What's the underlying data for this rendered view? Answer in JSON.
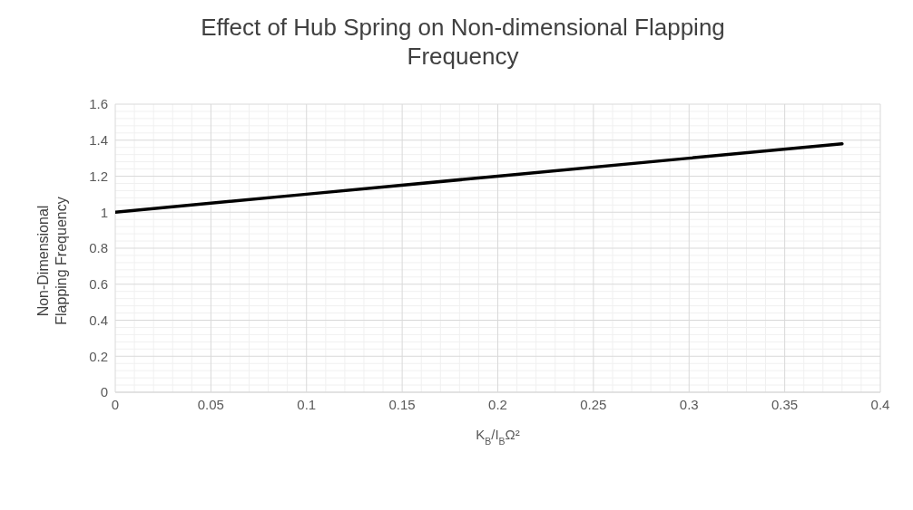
{
  "chart_data": {
    "type": "line",
    "title": "Effect of Hub Spring on Non-dimensional Flapping Frequency",
    "xlabel": "K$_{B}$/I$_{B}$Ω²",
    "ylabel": "Non-Dimensional Flapping Frequency",
    "x": [
      0,
      0.1,
      0.2,
      0.3,
      0.38
    ],
    "series": [
      {
        "color": "#000000",
        "values": [
          1,
          1.1,
          1.2,
          1.3,
          1.38
        ]
      }
    ],
    "xlim": [
      0,
      0.4
    ],
    "xticks": [
      0,
      0.05,
      0.1,
      0.15,
      0.2,
      0.25,
      0.3,
      0.35,
      0.4
    ],
    "ylim": [
      0,
      1.6
    ],
    "yticks": [
      0,
      0.2,
      0.4,
      0.6,
      0.8,
      1,
      1.2,
      1.4,
      1.6
    ],
    "grid": true,
    "marker": "none",
    "line_style": "solid"
  }
}
